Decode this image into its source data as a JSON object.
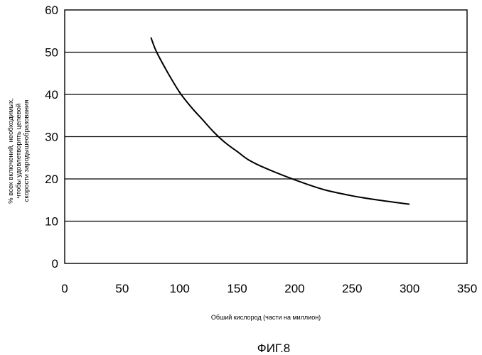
{
  "chart_data": {
    "type": "line",
    "xlabel": "Обший кислород (части на миллион)",
    "ylabel_lines": [
      "% всех включений, необходимых,",
      "чтобы удовлетворять целевой",
      "скорости зародышеобразования"
    ],
    "caption": "ФИГ.8",
    "xlim": [
      0,
      350
    ],
    "ylim": [
      0,
      60
    ],
    "xticks": [
      "0",
      "50",
      "100",
      "150",
      "200",
      "250",
      "300",
      "350"
    ],
    "yticks": [
      "0",
      "10",
      "20",
      "30",
      "40",
      "50",
      "60"
    ],
    "grid": "horizontal",
    "legend": "none",
    "series": [
      {
        "x": [
          75,
          80,
          90,
          100,
          110,
          120,
          130,
          140,
          150,
          160,
          175,
          200,
          225,
          250,
          275,
          300
        ],
        "y": [
          53.5,
          50,
          45,
          40.5,
          37,
          34,
          31,
          28.5,
          26.5,
          24.5,
          22.5,
          19.8,
          17.5,
          16,
          14.9,
          14
        ]
      }
    ]
  }
}
